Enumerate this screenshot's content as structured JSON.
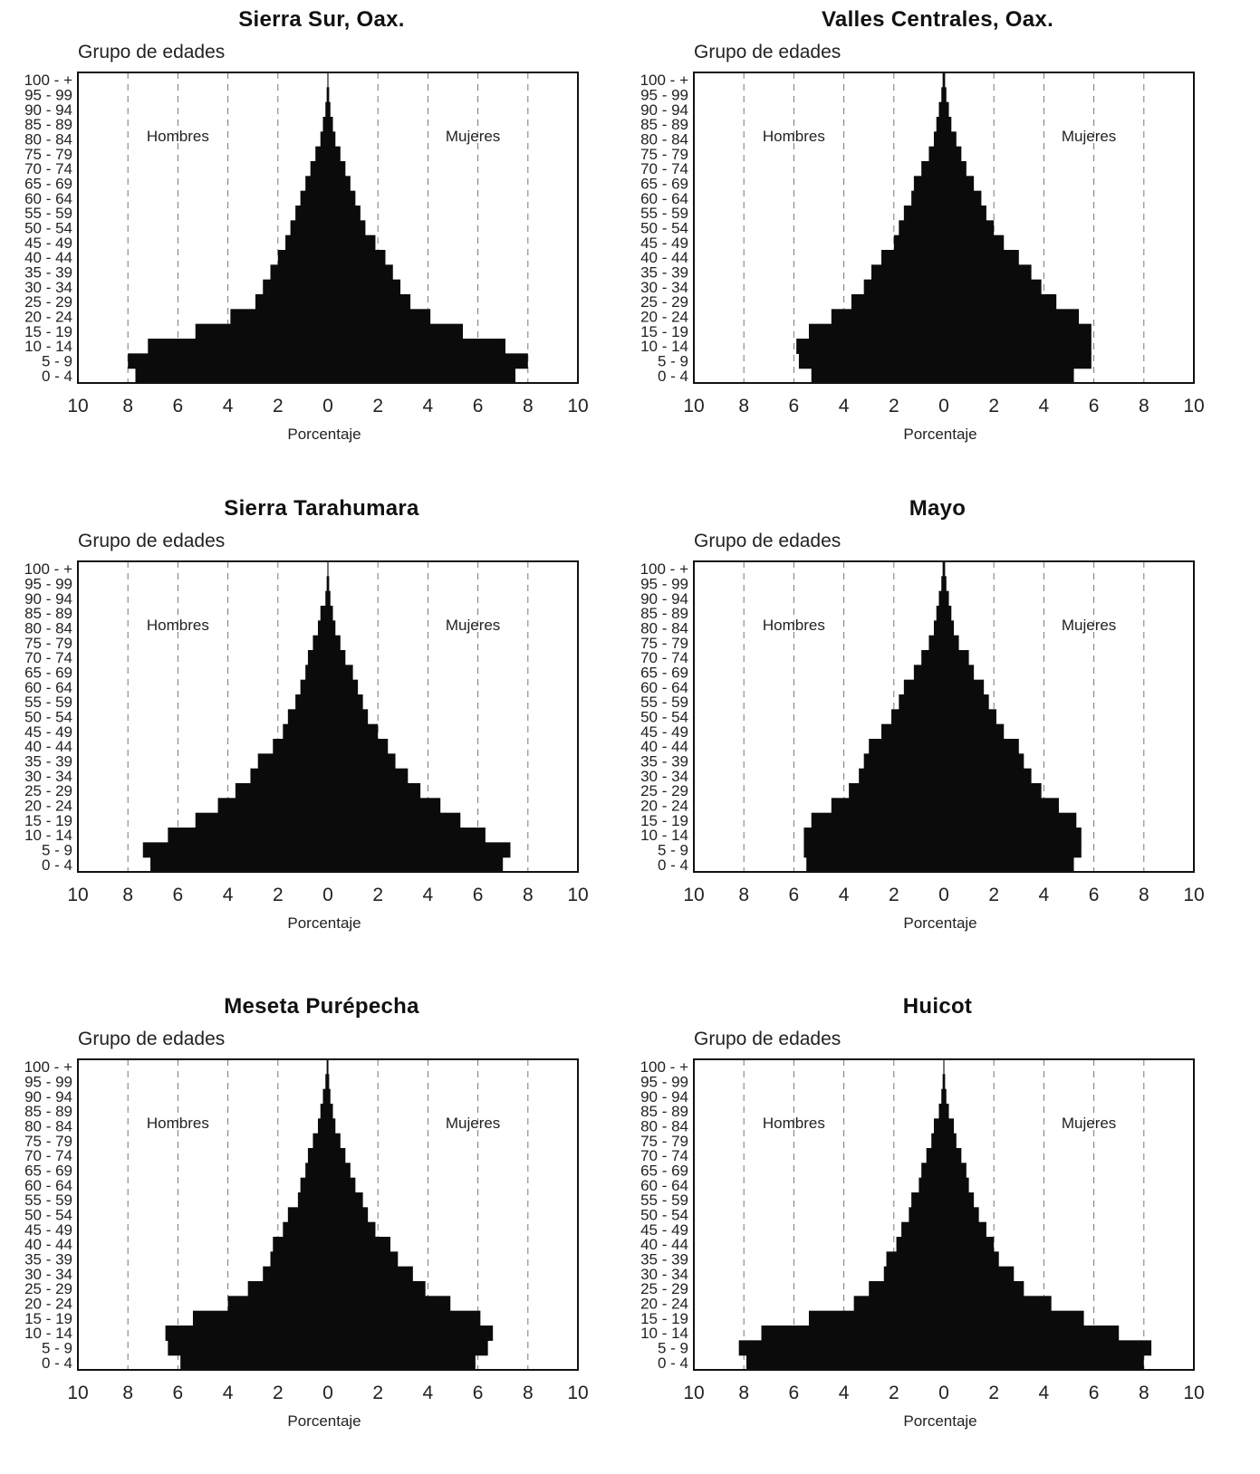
{
  "age_groups": [
    "0 - 4",
    "5 - 9",
    "10 - 14",
    "15 - 19",
    "20 - 24",
    "25 - 29",
    "30 - 34",
    "35 - 39",
    "40 - 44",
    "45 - 49",
    "50 - 54",
    "55 - 59",
    "60 - 64",
    "65 - 69",
    "70 - 74",
    "75 - 79",
    "80 - 84",
    "85 - 89",
    "90 - 94",
    "95 - 99",
    "100 - +"
  ],
  "chart_data": [
    {
      "type": "bar",
      "orientation": "horizontal-pyramid",
      "title": "Sierra Sur, Oax.",
      "ylabel": "Grupo de edades",
      "xlabel": "Porcentaje",
      "xlim": [
        -10,
        10
      ],
      "xticks": [
        "10",
        "8",
        "6",
        "4",
        "2",
        "0",
        "2",
        "4",
        "6",
        "8",
        "10"
      ],
      "left_label": "Hombres",
      "right_label": "Mujeres",
      "grid": "vertical dashed",
      "categories": [
        "0 - 4",
        "5 - 9",
        "10 - 14",
        "15 - 19",
        "20 - 24",
        "25 - 29",
        "30 - 34",
        "35 - 39",
        "40 - 44",
        "45 - 49",
        "50 - 54",
        "55 - 59",
        "60 - 64",
        "65 - 69",
        "70 - 74",
        "75 - 79",
        "80 - 84",
        "85 - 89",
        "90 - 94",
        "95 - 99",
        "100 - +"
      ],
      "series": [
        {
          "name": "Hombres",
          "values": [
            7.7,
            8.0,
            7.2,
            5.3,
            3.9,
            2.9,
            2.6,
            2.3,
            2.0,
            1.7,
            1.5,
            1.3,
            1.1,
            0.9,
            0.7,
            0.5,
            0.3,
            0.2,
            0.1,
            0.05,
            0.02
          ]
        },
        {
          "name": "Mujeres",
          "values": [
            7.5,
            8.0,
            7.1,
            5.4,
            4.1,
            3.3,
            2.9,
            2.6,
            2.3,
            1.9,
            1.5,
            1.3,
            1.1,
            0.9,
            0.7,
            0.5,
            0.3,
            0.2,
            0.1,
            0.05,
            0.02
          ]
        }
      ]
    },
    {
      "type": "bar",
      "orientation": "horizontal-pyramid",
      "title": "Valles Centrales, Oax.",
      "ylabel": "Grupo de edades",
      "xlabel": "Porcentaje",
      "xlim": [
        -10,
        10
      ],
      "xticks": [
        "10",
        "8",
        "6",
        "4",
        "2",
        "0",
        "2",
        "4",
        "6",
        "8",
        "10"
      ],
      "left_label": "Hombres",
      "right_label": "Mujeres",
      "grid": "vertical dashed",
      "categories": [
        "0 - 4",
        "5 - 9",
        "10 - 14",
        "15 - 19",
        "20 - 24",
        "25 - 29",
        "30 - 34",
        "35 - 39",
        "40 - 44",
        "45 - 49",
        "50 - 54",
        "55 - 59",
        "60 - 64",
        "65 - 69",
        "70 - 74",
        "75 - 79",
        "80 - 84",
        "85 - 89",
        "90 - 94",
        "95 - 99",
        "100 - +"
      ],
      "series": [
        {
          "name": "Hombres",
          "values": [
            5.3,
            5.8,
            5.9,
            5.4,
            4.5,
            3.7,
            3.2,
            2.9,
            2.5,
            2.0,
            1.8,
            1.6,
            1.3,
            1.2,
            0.9,
            0.6,
            0.4,
            0.3,
            0.2,
            0.1,
            0.05
          ]
        },
        {
          "name": "Mujeres",
          "values": [
            5.2,
            5.9,
            5.9,
            5.9,
            5.4,
            4.5,
            3.9,
            3.5,
            3.0,
            2.4,
            2.0,
            1.7,
            1.5,
            1.2,
            0.9,
            0.7,
            0.5,
            0.3,
            0.2,
            0.1,
            0.05
          ]
        }
      ]
    },
    {
      "type": "bar",
      "orientation": "horizontal-pyramid",
      "title": "Sierra Tarahumara",
      "ylabel": "Grupo de edades",
      "xlabel": "Porcentaje",
      "xlim": [
        -10,
        10
      ],
      "xticks": [
        "10",
        "8",
        "6",
        "4",
        "2",
        "0",
        "2",
        "4",
        "6",
        "8",
        "10"
      ],
      "left_label": "Hombres",
      "right_label": "Mujeres",
      "grid": "vertical dashed",
      "categories": [
        "0 - 4",
        "5 - 9",
        "10 - 14",
        "15 - 19",
        "20 - 24",
        "25 - 29",
        "30 - 34",
        "35 - 39",
        "40 - 44",
        "45 - 49",
        "50 - 54",
        "55 - 59",
        "60 - 64",
        "65 - 69",
        "70 - 74",
        "75 - 79",
        "80 - 84",
        "85 - 89",
        "90 - 94",
        "95 - 99",
        "100 - +"
      ],
      "series": [
        {
          "name": "Hombres",
          "values": [
            7.1,
            7.4,
            6.4,
            5.3,
            4.4,
            3.7,
            3.1,
            2.8,
            2.2,
            1.8,
            1.6,
            1.3,
            1.1,
            0.9,
            0.8,
            0.6,
            0.4,
            0.3,
            0.1,
            0.05,
            0.02
          ]
        },
        {
          "name": "Mujeres",
          "values": [
            7.0,
            7.3,
            6.3,
            5.3,
            4.5,
            3.7,
            3.2,
            2.7,
            2.4,
            2.0,
            1.6,
            1.4,
            1.2,
            1.0,
            0.7,
            0.5,
            0.3,
            0.2,
            0.1,
            0.05,
            0.02
          ]
        }
      ]
    },
    {
      "type": "bar",
      "orientation": "horizontal-pyramid",
      "title": "Mayo",
      "ylabel": "Grupo de edades",
      "xlabel": "Porcentaje",
      "xlim": [
        -10,
        10
      ],
      "xticks": [
        "10",
        "8",
        "6",
        "4",
        "2",
        "0",
        "2",
        "4",
        "6",
        "8",
        "10"
      ],
      "left_label": "Hombres",
      "right_label": "Mujeres",
      "grid": "vertical dashed",
      "categories": [
        "0 - 4",
        "5 - 9",
        "10 - 14",
        "15 - 19",
        "20 - 24",
        "25 - 29",
        "30 - 34",
        "35 - 39",
        "40 - 44",
        "45 - 49",
        "50 - 54",
        "55 - 59",
        "60 - 64",
        "65 - 69",
        "70 - 74",
        "75 - 79",
        "80 - 84",
        "85 - 89",
        "90 - 94",
        "95 - 99",
        "100 - +"
      ],
      "series": [
        {
          "name": "Hombres",
          "values": [
            5.5,
            5.6,
            5.6,
            5.3,
            4.5,
            3.8,
            3.4,
            3.2,
            3.0,
            2.5,
            2.1,
            1.8,
            1.6,
            1.2,
            0.9,
            0.6,
            0.4,
            0.3,
            0.2,
            0.1,
            0.05
          ]
        },
        {
          "name": "Mujeres",
          "values": [
            5.2,
            5.5,
            5.5,
            5.3,
            4.6,
            3.9,
            3.5,
            3.2,
            3.0,
            2.4,
            2.1,
            1.8,
            1.6,
            1.2,
            1.0,
            0.6,
            0.4,
            0.3,
            0.2,
            0.1,
            0.05
          ]
        }
      ]
    },
    {
      "type": "bar",
      "orientation": "horizontal-pyramid",
      "title": "Meseta Purépecha",
      "ylabel": "Grupo de edades",
      "xlabel": "Porcentaje",
      "xlim": [
        -10,
        10
      ],
      "xticks": [
        "10",
        "8",
        "6",
        "4",
        "2",
        "0",
        "2",
        "4",
        "6",
        "8",
        "10"
      ],
      "left_label": "Hombres",
      "right_label": "Mujeres",
      "grid": "vertical dashed",
      "categories": [
        "0 - 4",
        "5 - 9",
        "10 - 14",
        "15 - 19",
        "20 - 24",
        "25 - 29",
        "30 - 34",
        "35 - 39",
        "40 - 44",
        "45 - 49",
        "50 - 54",
        "55 - 59",
        "60 - 64",
        "65 - 69",
        "70 - 74",
        "75 - 79",
        "80 - 84",
        "85 - 89",
        "90 - 94",
        "95 - 99",
        "100 - +"
      ],
      "series": [
        {
          "name": "Hombres",
          "values": [
            5.9,
            6.4,
            6.5,
            5.4,
            4.0,
            3.2,
            2.6,
            2.3,
            2.2,
            1.8,
            1.6,
            1.2,
            1.1,
            0.9,
            0.8,
            0.6,
            0.4,
            0.3,
            0.2,
            0.1,
            0.05
          ]
        },
        {
          "name": "Mujeres",
          "values": [
            5.9,
            6.4,
            6.6,
            6.1,
            4.9,
            3.9,
            3.4,
            2.8,
            2.5,
            1.9,
            1.6,
            1.4,
            1.1,
            0.9,
            0.7,
            0.5,
            0.3,
            0.2,
            0.1,
            0.05,
            0.02
          ]
        }
      ]
    },
    {
      "type": "bar",
      "orientation": "horizontal-pyramid",
      "title": "Huicot",
      "ylabel": "Grupo de edades",
      "xlabel": "Porcentaje",
      "xlim": [
        -10,
        10
      ],
      "xticks": [
        "10",
        "8",
        "6",
        "4",
        "2",
        "0",
        "2",
        "4",
        "6",
        "8",
        "10"
      ],
      "left_label": "Hombres",
      "right_label": "Mujeres",
      "grid": "vertical dashed",
      "categories": [
        "0 - 4",
        "5 - 9",
        "10 - 14",
        "15 - 19",
        "20 - 24",
        "25 - 29",
        "30 - 34",
        "35 - 39",
        "40 - 44",
        "45 - 49",
        "50 - 54",
        "55 - 59",
        "60 - 64",
        "65 - 69",
        "70 - 74",
        "75 - 79",
        "80 - 84",
        "85 - 89",
        "90 - 94",
        "95 - 99",
        "100 - +"
      ],
      "series": [
        {
          "name": "Hombres",
          "values": [
            7.9,
            8.2,
            7.3,
            5.4,
            3.6,
            3.0,
            2.4,
            2.3,
            1.9,
            1.7,
            1.4,
            1.3,
            1.0,
            0.9,
            0.7,
            0.5,
            0.4,
            0.2,
            0.1,
            0.05,
            0.02
          ]
        },
        {
          "name": "Mujeres",
          "values": [
            8.0,
            8.3,
            7.0,
            5.6,
            4.3,
            3.2,
            2.8,
            2.2,
            2.0,
            1.7,
            1.4,
            1.2,
            1.0,
            0.9,
            0.7,
            0.5,
            0.4,
            0.2,
            0.1,
            0.05,
            0.02
          ]
        }
      ]
    }
  ]
}
